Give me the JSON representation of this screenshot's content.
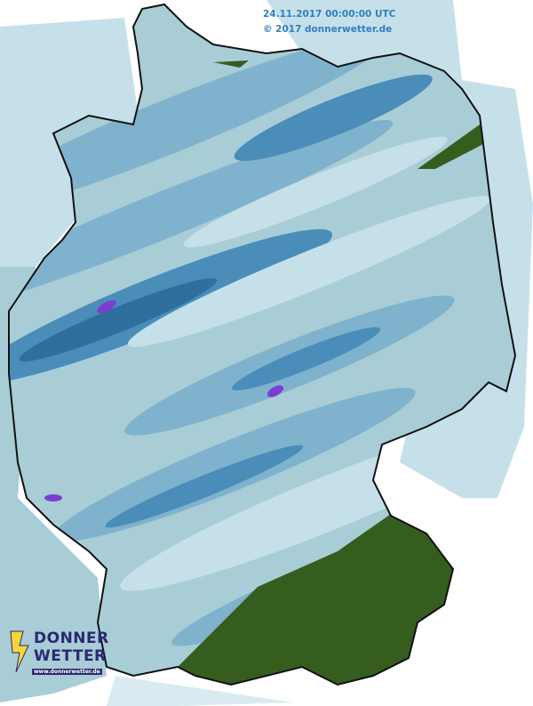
{
  "header": {
    "timestamp": "24.11.2017 00:00:00 UTC",
    "copyright": "© 2017 donnerwetter.de"
  },
  "logo": {
    "line1": "DONNER",
    "line2": "WETTER",
    "url": "www.donnerwetter.de",
    "icon": "lightning-bolt-icon"
  },
  "map": {
    "region": "Germany",
    "layer": "precipitation radar",
    "colors": {
      "land_base": "#a9cdd6",
      "light": "#c6e0ea",
      "medium": "#7fb2cc",
      "strong": "#4a8db8",
      "heavy": "#2f6f9e",
      "very_heavy": "#7a3fd0",
      "snow_covered_alps": "#355e1e",
      "timestamp_text": "#2f7fc0",
      "logo_navy": "#2b2970",
      "logo_yellow": "#f5d63a"
    }
  }
}
